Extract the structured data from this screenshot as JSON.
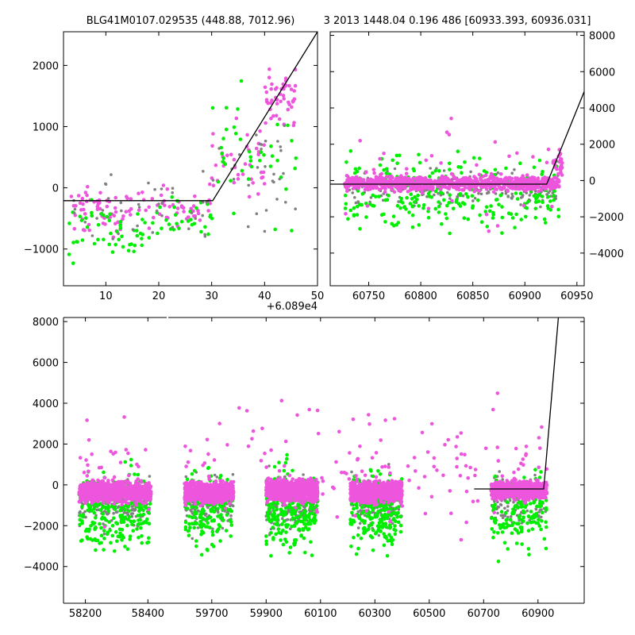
{
  "title_left": "BLG41M0107.029535 (448.88, 7012.96)",
  "title_right": "3 2013 1448.04 0.196 486 [60933.393, 60936.031]",
  "colors": {
    "magenta": "#ee55dd",
    "green": "#00ee00",
    "gray": "#808080",
    "line": "#000000"
  },
  "chart_data": [
    {
      "name": "zoom-left",
      "type": "scatter",
      "xlim": [
        2,
        50
      ],
      "ylim": [
        -1600,
        2550
      ],
      "xticks": [
        10,
        20,
        30,
        40,
        50
      ],
      "yticks": [
        -1000,
        0,
        1000,
        2000
      ],
      "offset_label": "+6.089e4",
      "model": {
        "x": [
          2,
          30.2,
          50
        ],
        "y": [
          -210,
          -210,
          2550
        ]
      },
      "series": [
        {
          "name": "magenta",
          "clusters": [
            [
              3,
              14,
              -400,
              350,
              60
            ],
            [
              14,
              30,
              -300,
              300,
              50
            ],
            [
              30,
              40,
              400,
              600,
              40
            ],
            [
              40,
              46,
              1500,
              400,
              50
            ]
          ]
        },
        {
          "name": "green",
          "clusters": [
            [
              3,
              18,
              -700,
              450,
              50
            ],
            [
              18,
              30,
              -500,
              400,
              30
            ],
            [
              30,
              46,
              500,
              900,
              40
            ]
          ]
        },
        {
          "name": "gray",
          "clusters": [
            [
              3,
              30,
              -300,
              600,
              40
            ],
            [
              30,
              46,
              300,
              900,
              30
            ]
          ]
        }
      ]
    },
    {
      "name": "zoom-right",
      "type": "scatter",
      "xlim": [
        60713,
        60957
      ],
      "ylim": [
        -5800,
        8200
      ],
      "xticks": [
        60750,
        60800,
        60850,
        60900,
        60950
      ],
      "yticks": [
        -4000,
        -2000,
        0,
        2000,
        4000,
        6000,
        8000
      ],
      "model": {
        "x": [
          60713,
          60921,
          60957
        ],
        "y": [
          -200,
          -200,
          4900
        ]
      },
      "series": [
        {
          "name": "gray",
          "clusters": [
            [
              60727,
              60933,
              -500,
              900,
              220
            ]
          ]
        },
        {
          "name": "green",
          "clusters": [
            [
              60727,
              60933,
              -700,
              1800,
              260
            ]
          ]
        },
        {
          "name": "magenta",
          "clusters": [
            [
              60727,
              60933,
              -150,
              350,
              900
            ],
            [
              60927,
              60936,
              1000,
              800,
              30
            ],
            [
              60727,
              60933,
              500,
              2500,
              40
            ]
          ]
        }
      ]
    },
    {
      "name": "full-lightcurve",
      "type": "scatter",
      "ylim": [
        -5800,
        8200
      ],
      "yticks": [
        -4000,
        -2000,
        0,
        2000,
        4000,
        6000,
        8000
      ],
      "segments": [
        {
          "xlim": [
            58130,
            58460
          ],
          "xticks": [
            58200,
            58400
          ],
          "series": [
            {
              "name": "gray",
              "clusters": [
                [
                  58180,
                  58410,
                  -900,
                  1100,
                  200
                ]
              ]
            },
            {
              "name": "green",
              "clusters": [
                [
                  58180,
                  58410,
                  -1300,
                  1700,
                  240
                ]
              ]
            },
            {
              "name": "magenta",
              "clusters": [
                [
                  58180,
                  58410,
                  -350,
                  450,
                  900
                ],
                [
                  58180,
                  58410,
                  600,
                  2500,
                  40
                ]
              ]
            }
          ]
        },
        {
          "xlim": [
            59540,
            61070
          ],
          "xticks": [
            59700,
            59900,
            60100,
            60300,
            60500,
            60700,
            60900
          ],
          "model": {
            "x": [
              60665,
              60921,
              61070
            ],
            "y": [
              -200,
              -200,
              23000
            ]
          },
          "series": [
            {
              "name": "gray",
              "clusters": [
                [
                  59600,
                  59780,
                  -900,
                  1200,
                  160
                ],
                [
                  59900,
                  60090,
                  -900,
                  1200,
                  180
                ],
                [
                  60210,
                  60400,
                  -900,
                  1200,
                  180
                ],
                [
                  60727,
                  60933,
                  -800,
                  1200,
                  130
                ]
              ]
            },
            {
              "name": "green",
              "clusters": [
                [
                  59600,
                  59780,
                  -1200,
                  1700,
                  190
                ],
                [
                  59900,
                  60090,
                  -1200,
                  1800,
                  220
                ],
                [
                  60210,
                  60400,
                  -1200,
                  1800,
                  210
                ],
                [
                  60727,
                  60933,
                  -1300,
                  1800,
                  160
                ]
              ]
            },
            {
              "name": "magenta",
              "clusters": [
                [
                  59600,
                  59780,
                  -350,
                  450,
                  750
                ],
                [
                  59900,
                  60090,
                  -250,
                  500,
                  850
                ],
                [
                  60210,
                  60400,
                  -350,
                  450,
                  800
                ],
                [
                  60727,
                  60933,
                  -250,
                  400,
                  700
                ],
                [
                  59600,
                  60933,
                  800,
                  2800,
                  150
                ]
              ]
            }
          ]
        }
      ]
    }
  ]
}
